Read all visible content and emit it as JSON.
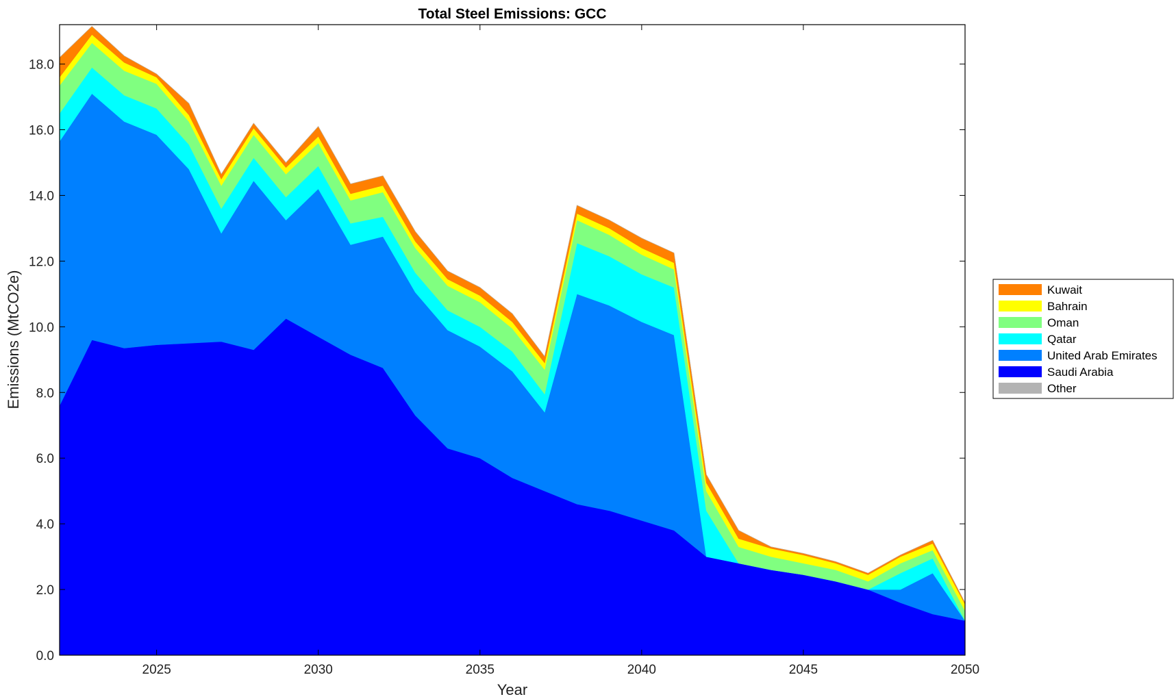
{
  "chart_data": {
    "type": "area",
    "stacked": true,
    "title": "Total Steel Emissions: GCC",
    "xlabel": "Year",
    "ylabel": "Emissions (MtCO2e)",
    "xlim": [
      2022,
      2050
    ],
    "ylim": [
      0,
      19.2
    ],
    "xticks": [
      "2025",
      "2030",
      "2035",
      "2040",
      "2045",
      "2050"
    ],
    "yticks": [
      "0.0",
      "2.0",
      "4.0",
      "6.0",
      "8.0",
      "10.0",
      "12.0",
      "14.0",
      "16.0",
      "18.0"
    ],
    "legend_position": "right",
    "grid": false,
    "x": [
      2022,
      2023,
      2024,
      2025,
      2026,
      2027,
      2028,
      2029,
      2030,
      2031,
      2032,
      2033,
      2034,
      2035,
      2036,
      2037,
      2038,
      2039,
      2040,
      2041,
      2042,
      2043,
      2044,
      2045,
      2046,
      2047,
      2048,
      2049,
      2050
    ],
    "series": [
      {
        "name": "Saudi Arabia",
        "color": "#0000ff",
        "values": [
          7.6,
          9.6,
          9.35,
          9.45,
          9.5,
          9.55,
          9.3,
          10.25,
          9.7,
          9.15,
          8.75,
          7.3,
          6.3,
          6.0,
          5.4,
          5.0,
          4.6,
          4.4,
          4.1,
          3.8,
          3.0,
          2.8,
          2.6,
          2.45,
          2.25,
          2.0,
          1.6,
          1.25,
          1.05
        ]
      },
      {
        "name": "United Arab Emirates",
        "color": "#0080ff",
        "values": [
          8.05,
          7.5,
          6.9,
          6.4,
          5.3,
          3.3,
          5.15,
          3.0,
          4.5,
          3.35,
          4.0,
          3.75,
          3.6,
          3.4,
          3.25,
          2.4,
          6.4,
          6.25,
          6.05,
          5.95,
          0.0,
          0.0,
          0.0,
          0.0,
          0.0,
          0.0,
          0.4,
          1.25,
          0.0
        ]
      },
      {
        "name": "Qatar",
        "color": "#00ffff",
        "values": [
          0.85,
          0.8,
          0.8,
          0.8,
          0.75,
          0.75,
          0.7,
          0.7,
          0.7,
          0.65,
          0.6,
          0.6,
          0.6,
          0.6,
          0.6,
          0.55,
          1.55,
          1.5,
          1.45,
          1.45,
          1.4,
          0.0,
          0.0,
          0.0,
          0.0,
          0.0,
          0.5,
          0.45,
          0.0
        ]
      },
      {
        "name": "Oman",
        "color": "#80ff80",
        "values": [
          0.85,
          0.75,
          0.75,
          0.75,
          0.7,
          0.7,
          0.7,
          0.7,
          0.7,
          0.7,
          0.75,
          0.75,
          0.75,
          0.75,
          0.7,
          0.75,
          0.7,
          0.65,
          0.6,
          0.55,
          0.6,
          0.5,
          0.4,
          0.35,
          0.35,
          0.25,
          0.3,
          0.25,
          0.3
        ]
      },
      {
        "name": "Bahrain",
        "color": "#ffff00",
        "values": [
          0.25,
          0.25,
          0.25,
          0.2,
          0.2,
          0.2,
          0.2,
          0.2,
          0.2,
          0.2,
          0.2,
          0.2,
          0.2,
          0.2,
          0.2,
          0.2,
          0.2,
          0.2,
          0.2,
          0.2,
          0.25,
          0.25,
          0.25,
          0.25,
          0.2,
          0.2,
          0.2,
          0.2,
          0.2
        ]
      },
      {
        "name": "Kuwait",
        "color": "#ff8000",
        "values": [
          0.6,
          0.25,
          0.2,
          0.1,
          0.35,
          0.15,
          0.15,
          0.15,
          0.3,
          0.3,
          0.3,
          0.3,
          0.25,
          0.25,
          0.25,
          0.2,
          0.25,
          0.25,
          0.3,
          0.3,
          0.25,
          0.25,
          0.05,
          0.05,
          0.05,
          0.05,
          0.05,
          0.1,
          0.05
        ]
      },
      {
        "name": "Other",
        "color": "#b3b3b3",
        "values": [
          0,
          0,
          0,
          0,
          0,
          0,
          0,
          0,
          0,
          0,
          0,
          0,
          0,
          0,
          0,
          0,
          0,
          0,
          0,
          0,
          0,
          0,
          0,
          0,
          0,
          0,
          0,
          0,
          0
        ]
      }
    ],
    "legend_order": [
      "Kuwait",
      "Bahrain",
      "Oman",
      "Qatar",
      "United Arab Emirates",
      "Saudi Arabia",
      "Other"
    ]
  }
}
